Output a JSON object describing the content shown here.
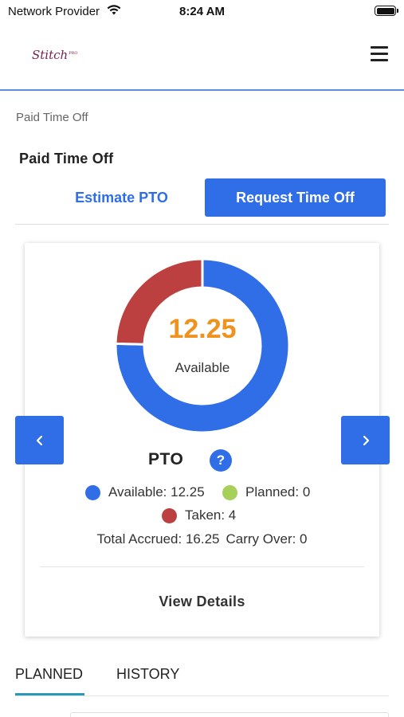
{
  "status_bar": {
    "carrier": "Network Provider",
    "time": "8:24 AM",
    "wifi_icon": "wifi-icon",
    "battery_icon": "battery-icon"
  },
  "header": {
    "logo_text": "Stitch",
    "logo_badge": "PRO",
    "menu_icon": "hamburger-menu-icon"
  },
  "breadcrumb": "Paid Time Off",
  "page_title": "Paid Time Off",
  "actions": {
    "estimate_label": "Estimate PTO",
    "request_label": "Request Time Off"
  },
  "pto_card": {
    "available_value": "12.25",
    "available_caption": "Available",
    "policy_name": "PTO",
    "help_glyph": "?",
    "legend": {
      "available": "Available: 12.25",
      "planned": "Planned: 0",
      "taken": "Taken: 4"
    },
    "total_accrued": "Total Accrued: 16.25",
    "carry_over": "Carry Over: 0",
    "view_details_label": "View Details",
    "prev_icon": "chevron-left-icon",
    "next_icon": "chevron-right-icon"
  },
  "chart_data": {
    "type": "pie",
    "categories": [
      "Available",
      "Planned",
      "Taken"
    ],
    "values": [
      12.25,
      0,
      4
    ],
    "colors": [
      "#2f6ee6",
      "#a6d05a",
      "#bc4040"
    ]
  },
  "colors": {
    "accent": "#2f6ee6",
    "value_orange": "#f0921e",
    "taken_red": "#bc4040",
    "planned_green": "#a6d05a",
    "tab_underline": "#2a98b8"
  },
  "tabs": [
    {
      "label": "PLANNED",
      "active": true
    },
    {
      "label": "HISTORY",
      "active": false
    }
  ]
}
